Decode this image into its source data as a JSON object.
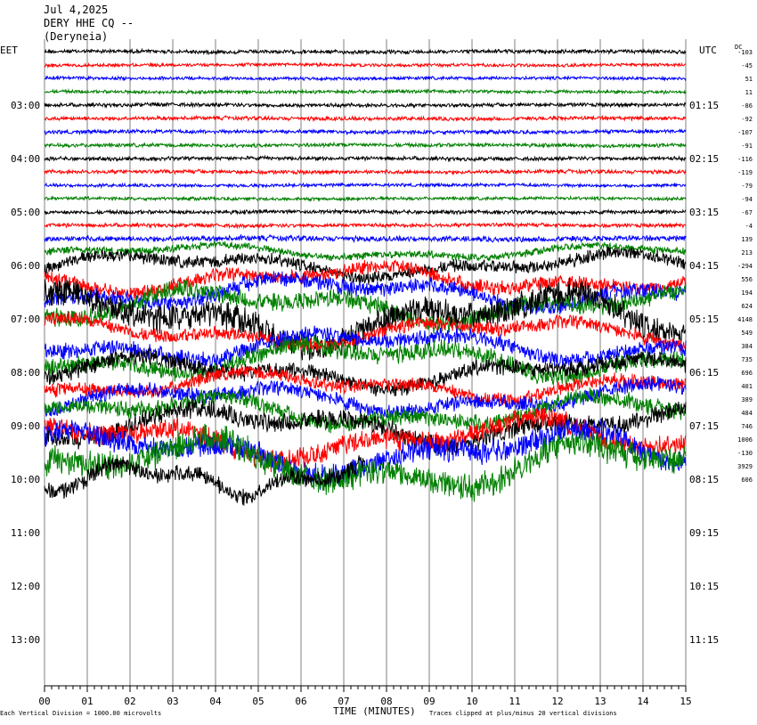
{
  "header": {
    "date": "Jul 4,2025",
    "station": "DERY HHE CQ --",
    "location": "(Deryneia)"
  },
  "left_tz": "EET",
  "right_tz": "UTC",
  "dc_label": "DC",
  "footer": {
    "scale": "Each Vertical Division = 1000.00 microvolts",
    "xlabel": "TIME (MINUTES)",
    "clip": "Traces clipped at plus/minus 20 vertical divisions"
  },
  "colors": {
    "black": "#000000",
    "red": "#ff0000",
    "blue": "#0000ff",
    "green": "#008000",
    "grid": "#808080"
  },
  "chart_data": {
    "type": "line",
    "title": "DERY HHE CQ --",
    "xlabel": "TIME (MINUTES)",
    "ylabel": "",
    "x_ticks": [
      "00",
      "01",
      "02",
      "03",
      "04",
      "05",
      "06",
      "07",
      "08",
      "09",
      "10",
      "11",
      "12",
      "13",
      "14",
      "15"
    ],
    "xlim": [
      0,
      15
    ],
    "left_hour_labels": [
      "03:00",
      "04:00",
      "05:00",
      "06:00",
      "07:00",
      "08:00",
      "09:00",
      "10:00",
      "11:00",
      "12:00",
      "13:00"
    ],
    "right_hour_labels": [
      "01:15",
      "02:15",
      "03:15",
      "04:15",
      "05:15",
      "06:15",
      "07:15",
      "08:15",
      "09:15",
      "10:15",
      "11:15"
    ],
    "trace_colors": [
      "black",
      "red",
      "blue",
      "green"
    ],
    "dc_offsets": [
      "-103",
      "-45",
      "51",
      "11",
      "-86",
      "-92",
      "-107",
      "-91",
      "-116",
      "-119",
      "-79",
      "-94",
      "-67",
      "-4",
      "139",
      "213",
      "-294",
      "556",
      "194",
      "624",
      "4148",
      "549",
      "384",
      "735",
      "696",
      "401",
      "389",
      "484",
      "746",
      "1006",
      "-130",
      "3929",
      "606"
    ],
    "amplitude_levels": [
      0.35,
      0.3,
      0.3,
      0.3,
      0.35,
      0.35,
      0.35,
      0.35,
      0.35,
      0.35,
      0.3,
      0.3,
      0.35,
      0.35,
      0.5,
      0.7,
      1.2,
      1.3,
      1.5,
      1.7,
      2.6,
      1.3,
      1.5,
      1.7,
      1.5,
      1.3,
      1.4,
      1.6,
      1.8,
      2.0,
      2.2,
      2.6,
      1.6
    ],
    "last_trace_end_minute": 7.5
  }
}
